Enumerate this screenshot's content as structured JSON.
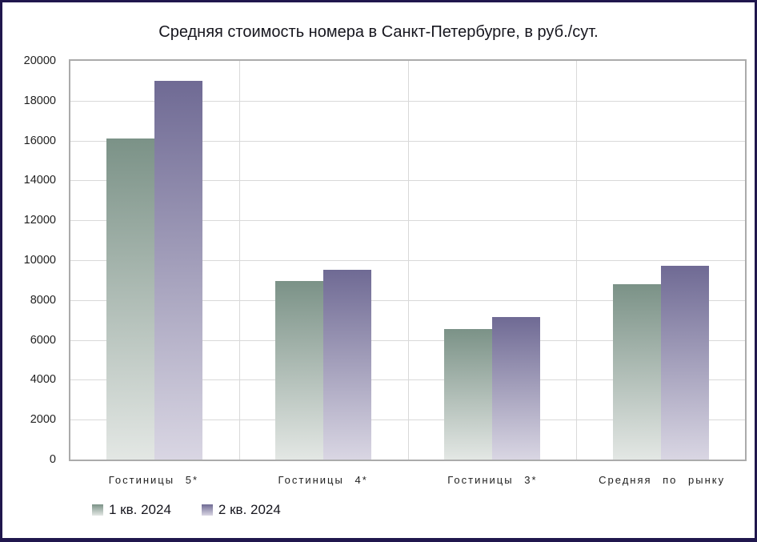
{
  "page": {
    "background": "#ffffff",
    "border_color": "#20174d"
  },
  "chart_data": {
    "type": "bar",
    "title": "Средняя стоимость номера в Санкт-Петербурге, в руб./сут.",
    "categories": [
      "Гостиницы 5*",
      "Гостиницы 4*",
      "Гостиницы 3*",
      "Средняя по рынку"
    ],
    "series": [
      {
        "name": "1 кв. 2024",
        "values": [
          16100,
          8950,
          6550,
          8800
        ],
        "color_top": "#7b9287",
        "color_bottom": "#e3e7e4"
      },
      {
        "name": "2 кв. 2024",
        "values": [
          19000,
          9500,
          7150,
          9700
        ],
        "color_top": "#6f6a94",
        "color_bottom": "#d9d6e3"
      }
    ],
    "xlabel": "",
    "ylabel": "",
    "ylim": [
      0,
      20000
    ],
    "ytick_step": 2000,
    "ytick_labels": [
      "0",
      "2000",
      "4000",
      "6000",
      "8000",
      "10000",
      "12000",
      "14000",
      "16000",
      "18000",
      "20000"
    ],
    "grid": true,
    "gridline_color": "#d9d9d9",
    "plot_border_color": "#ababab",
    "legend_position": "bottom-left"
  }
}
